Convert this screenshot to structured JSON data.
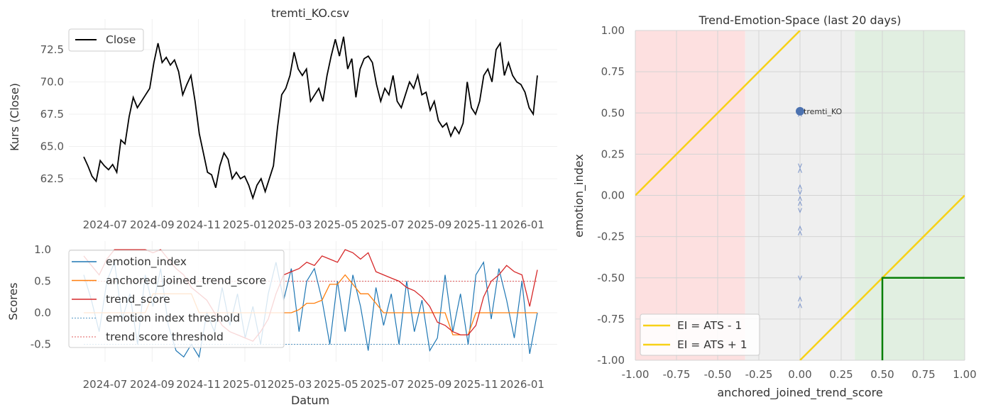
{
  "chart_data": [
    {
      "type": "line",
      "title": "tremti_KO.csv",
      "xlabel": "",
      "ylabel": "Kurs (Close)",
      "x_start": "2024-06-03",
      "x_end": "2026-01-21",
      "x_ticks": [
        "2024-07",
        "2024-09",
        "2024-11",
        "2025-01",
        "2025-03",
        "2025-05",
        "2025-07",
        "2025-09",
        "2025-11",
        "2026-01"
      ],
      "y_ticks": [
        "62.5",
        "65.0",
        "67.5",
        "70.0",
        "72.5"
      ],
      "ylim": [
        60.6,
        74.5
      ],
      "legend": "top-left",
      "series": [
        {
          "name": "Close",
          "color": "#000000",
          "values": [
            64.2,
            63.5,
            62.7,
            62.3,
            63.9,
            63.5,
            63.2,
            63.6,
            63.0,
            65.5,
            65.2,
            67.3,
            68.8,
            68.0,
            68.5,
            69.0,
            69.5,
            71.5,
            73.0,
            71.5,
            71.9,
            71.3,
            71.7,
            70.8,
            69.0,
            69.8,
            70.5,
            68.5,
            66.0,
            64.5,
            63.0,
            62.8,
            61.8,
            63.5,
            64.5,
            64.0,
            62.5,
            63.0,
            62.5,
            62.7,
            62.0,
            61.0,
            62.0,
            62.5,
            61.5,
            62.5,
            63.5,
            66.5,
            69.0,
            69.5,
            70.5,
            72.3,
            71.0,
            70.5,
            71.0,
            68.5,
            69.0,
            69.5,
            68.5,
            70.5,
            72.0,
            73.3,
            72.0,
            73.5,
            71.0,
            71.8,
            68.8,
            71.0,
            71.8,
            72.0,
            71.5,
            69.8,
            68.5,
            69.5,
            69.0,
            70.5,
            68.5,
            68.0,
            69.0,
            70.0,
            69.5,
            70.5,
            69.0,
            69.2,
            67.8,
            68.5,
            67.0,
            66.5,
            66.8,
            65.8,
            66.5,
            66.0,
            66.8,
            70.0,
            68.0,
            67.5,
            68.5,
            70.5,
            71.0,
            70.0,
            72.5,
            73.0,
            70.5,
            71.5,
            70.5,
            70.0,
            69.8,
            69.2,
            68.0,
            67.5,
            70.5
          ]
        }
      ]
    },
    {
      "type": "line",
      "title": "",
      "xlabel": "Datum",
      "ylabel": "Scores",
      "x_start": "2024-06-03",
      "x_end": "2026-01-21",
      "x_ticks": [
        "2024-07",
        "2024-09",
        "2024-11",
        "2025-01",
        "2025-03",
        "2025-05",
        "2025-07",
        "2025-09",
        "2025-11",
        "2026-01"
      ],
      "y_ticks": [
        "-0.5",
        "0.0",
        "0.5",
        "1.0"
      ],
      "ylim": [
        -0.78,
        1.05
      ],
      "legend": "top-left",
      "series": [
        {
          "name": "emotion_index",
          "color": "#1f77b4",
          "values": [
            0.6,
            0.2,
            -0.3,
            0.5,
            0.8,
            -0.1,
            0.3,
            -0.5,
            0.6,
            0.1,
            0.7,
            -0.2,
            -0.6,
            -0.7,
            -0.5,
            -0.7,
            0.0,
            -0.3,
            0.4,
            -0.2,
            0.3,
            -0.4,
            0.1,
            -0.5,
            0.3,
            0.8,
            0.2,
            0.7,
            -0.3,
            0.5,
            0.7,
            0.2,
            -0.5,
            0.5,
            -0.3,
            0.6,
            0.1,
            -0.6,
            0.4,
            -0.2,
            0.3,
            -0.5,
            0.5,
            -0.3,
            0.2,
            -0.6,
            -0.4,
            0.6,
            -0.3,
            0.3,
            -0.5,
            0.6,
            0.8,
            -0.1,
            0.7,
            0.2,
            -0.4,
            0.5,
            -0.65,
            0.0
          ]
        },
        {
          "name": "anchored_joined_trend_score",
          "color": "#ff7f0e",
          "values": [
            0,
            0,
            0,
            0,
            0,
            0,
            0,
            0,
            0,
            0.3,
            0.3,
            0.3,
            0.3,
            0.3,
            0.3,
            0,
            0,
            0,
            0,
            0,
            0,
            0,
            0,
            0,
            0,
            0,
            0,
            0,
            0.05,
            0.15,
            0.15,
            0.2,
            0.45,
            0.45,
            0.6,
            0.45,
            0.3,
            0.3,
            0.15,
            0,
            0,
            0,
            0,
            0,
            0,
            0,
            0,
            0,
            -0.35,
            -0.35,
            -0.35,
            0,
            0,
            0,
            0,
            0,
            0,
            0,
            0,
            0
          ]
        },
        {
          "name": "trend_score",
          "color": "#d62728",
          "values": [
            0.9,
            0.75,
            0.6,
            0.85,
            1.0,
            1.0,
            1.0,
            1.0,
            1.0,
            0.95,
            1.0,
            0.85,
            0.7,
            0.6,
            0.4,
            0.3,
            0.2,
            0.0,
            -0.2,
            -0.3,
            -0.35,
            -0.4,
            -0.45,
            -0.3,
            -0.1,
            0.3,
            0.6,
            0.65,
            0.7,
            0.8,
            0.75,
            0.9,
            0.85,
            0.8,
            1.0,
            0.95,
            0.85,
            0.95,
            0.65,
            0.6,
            0.55,
            0.5,
            0.4,
            0.35,
            0.25,
            0.1,
            -0.15,
            -0.2,
            -0.3,
            -0.35,
            -0.35,
            -0.2,
            0.25,
            0.5,
            0.6,
            0.75,
            0.65,
            0.6,
            0.1,
            0.68
          ]
        },
        {
          "name": "emotion index threshold",
          "color": "#1f77b4",
          "dashed": true,
          "value": -0.5
        },
        {
          "name": "trend score threshold",
          "color": "#d62728",
          "dashed": true,
          "value": 0.5
        }
      ]
    },
    {
      "type": "scatter",
      "title": "Trend-Emotion-Space (last 20 days)",
      "xlabel": "anchored_joined_trend_score",
      "ylabel": "emotion_index",
      "xlim": [
        -1,
        1
      ],
      "ylim": [
        -1,
        1
      ],
      "x_ticks": [
        "-1.00",
        "-0.75",
        "-0.50",
        "-0.25",
        "0.00",
        "0.25",
        "0.50",
        "0.75",
        "1.00"
      ],
      "y_ticks": [
        "-1.00",
        "-0.75",
        "-0.50",
        "-0.25",
        "0.00",
        "0.25",
        "0.50",
        "0.75",
        "1.00"
      ],
      "regions": [
        {
          "from": -1,
          "to": -0.333,
          "color": "#fde0e0"
        },
        {
          "from": -0.333,
          "to": 0.333,
          "color": "#efefef"
        },
        {
          "from": 0.333,
          "to": 1,
          "color": "#e1efe1"
        }
      ],
      "point": {
        "label": "tremti_KO",
        "x": 0.0,
        "y": 0.51,
        "color": "#4c72b0"
      },
      "trail_y": [
        0.49,
        0.18,
        0.15,
        0.05,
        0.02,
        -0.02,
        -0.05,
        -0.09,
        -0.2,
        -0.23,
        -0.5,
        -0.63,
        -0.67
      ],
      "lines": [
        {
          "name": "EI = ATS - 1",
          "color": "#f7d117"
        },
        {
          "name": "EI = ATS + 1",
          "color": "#f7d117"
        }
      ],
      "target_box": {
        "x": 0.5,
        "y": -0.5,
        "color": "#087f08"
      },
      "legend": "lower-left"
    }
  ]
}
